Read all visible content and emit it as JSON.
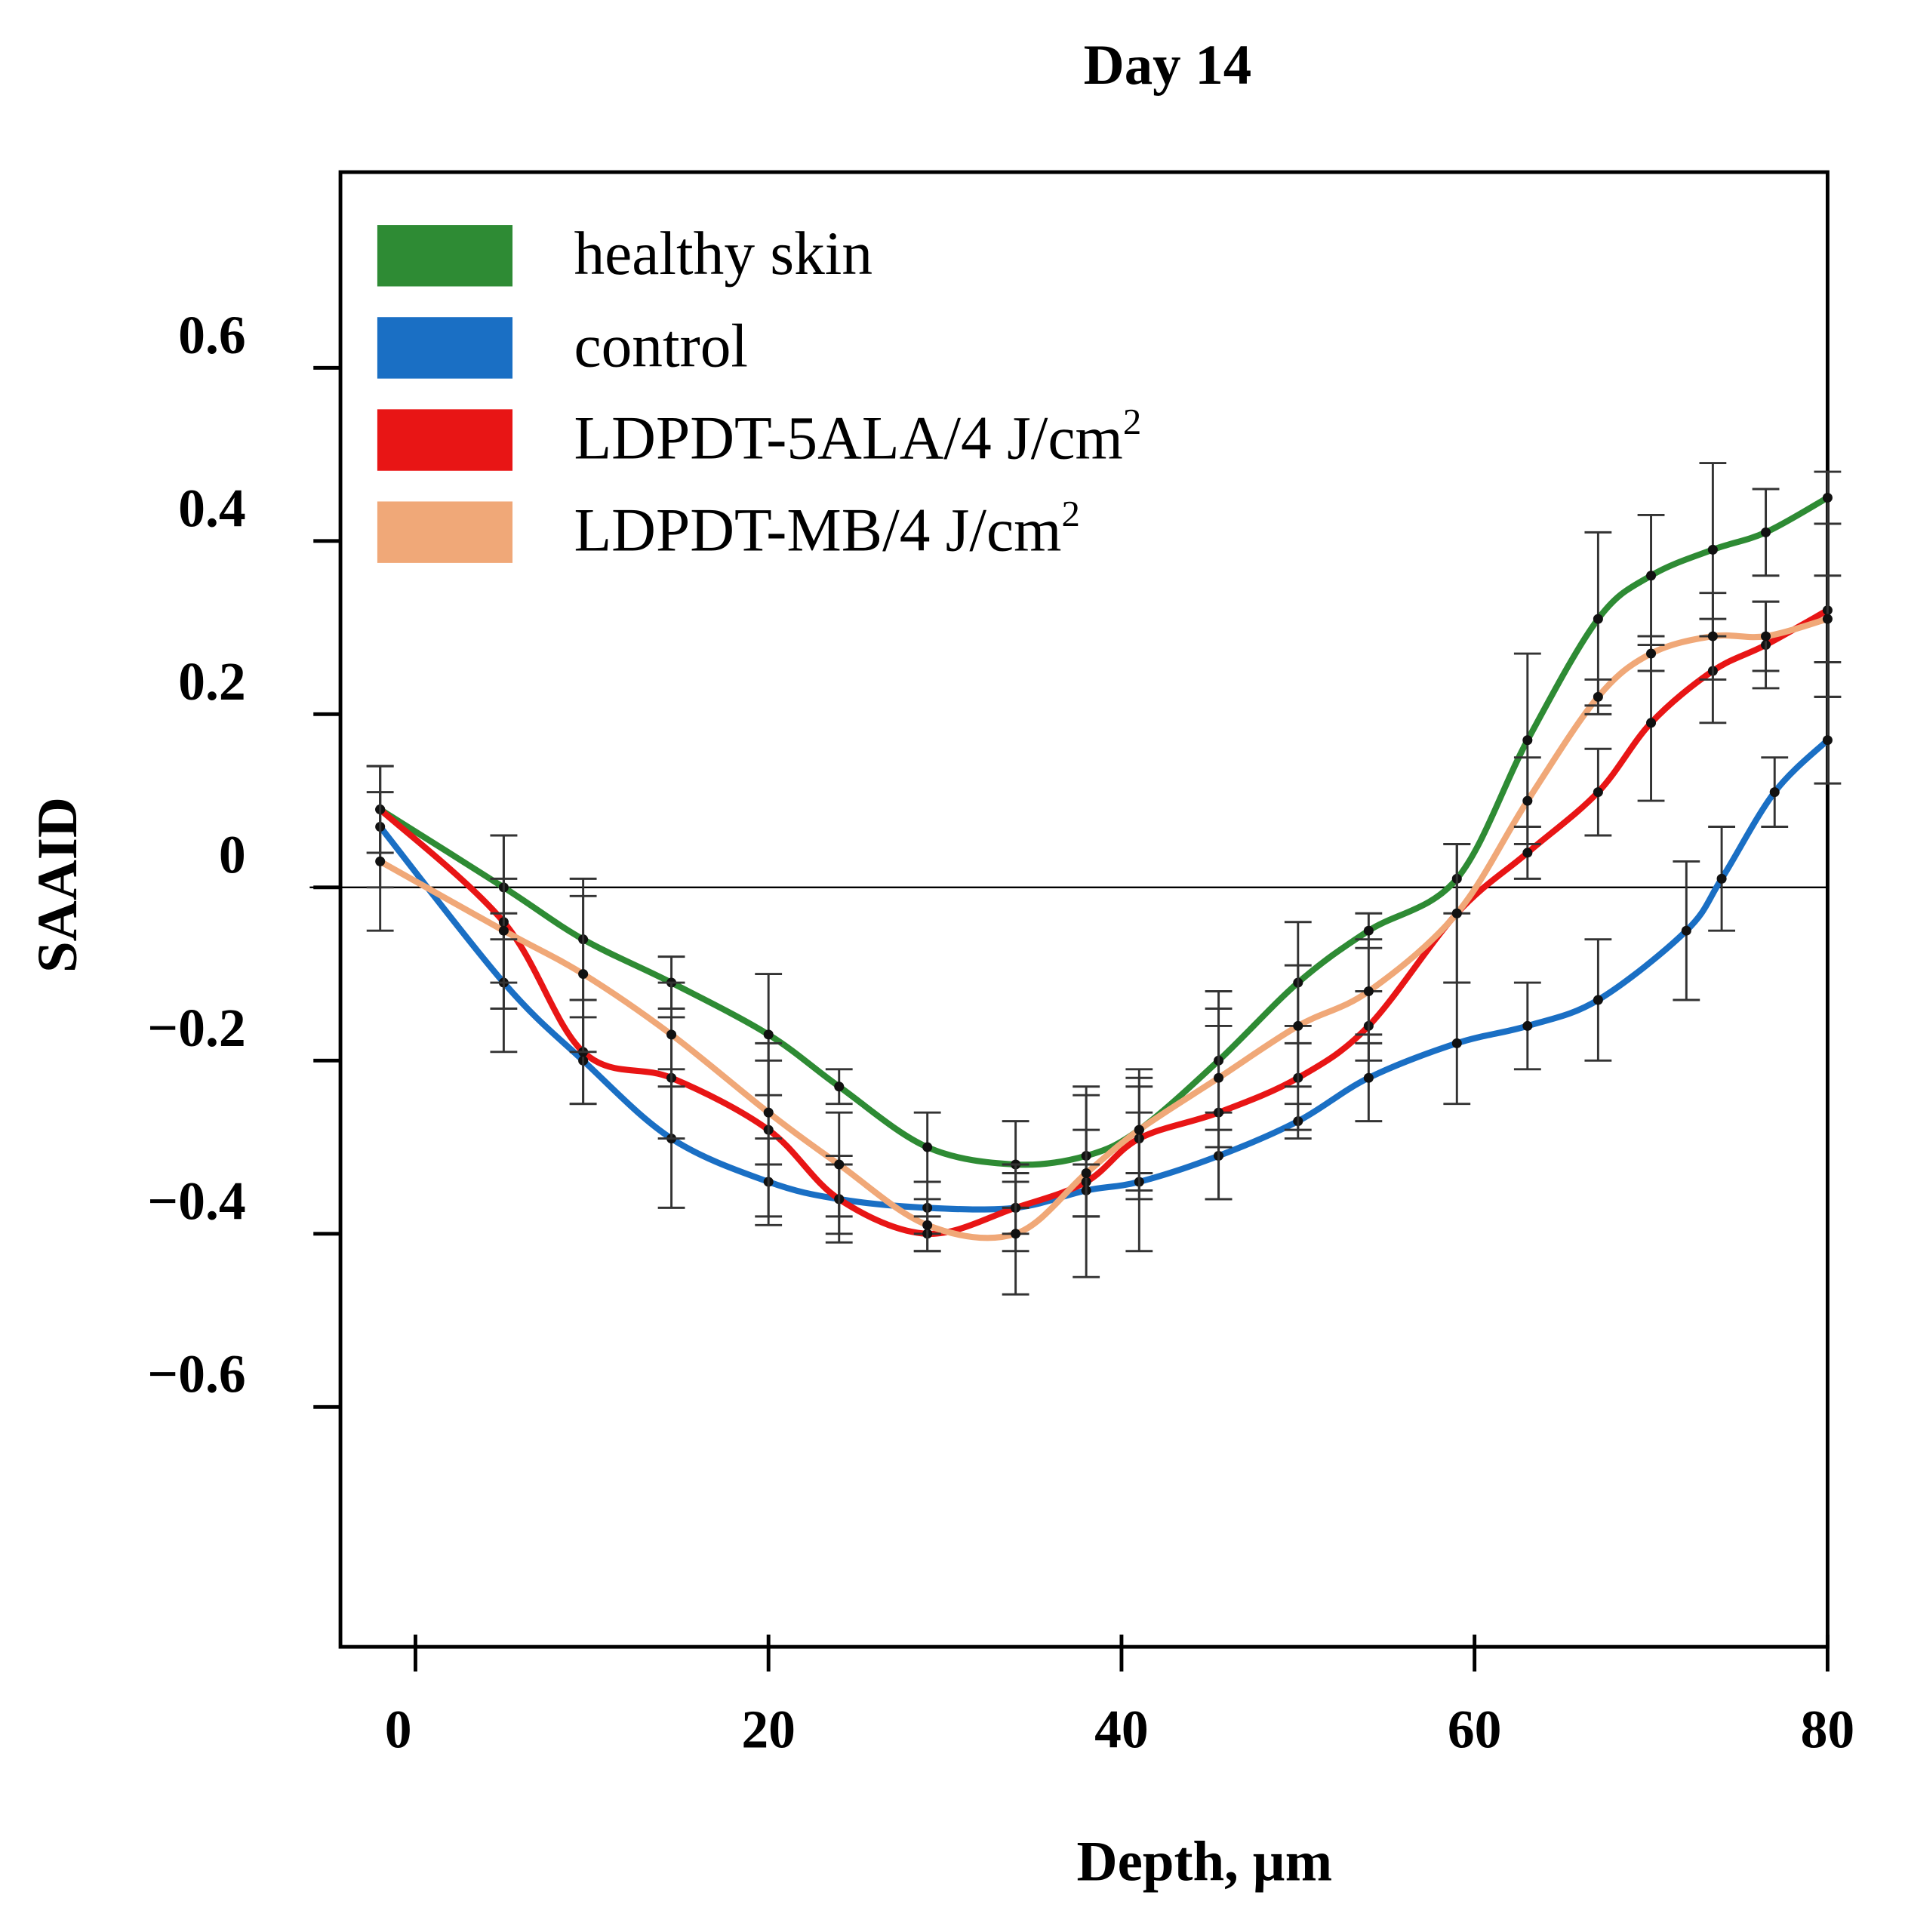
{
  "chart_data": {
    "type": "line",
    "title": "Day 14",
    "xlabel": "Depth, µm",
    "ylabel": "SAAID",
    "xlim": [
      -4.25,
      80
    ],
    "ylim": [
      -0.877,
      0.826
    ],
    "xticks": [
      0,
      20,
      40,
      60,
      80
    ],
    "xtick_labels": [
      "0",
      "20",
      "40",
      "60",
      "80"
    ],
    "yticks": [
      0.6,
      0.4,
      0.2,
      0,
      -0.2,
      -0.4,
      -0.6
    ],
    "ytick_labels": [
      "0.6",
      "0.4",
      "0.2",
      "0",
      "−0.2",
      "−0.4",
      "−0.6"
    ],
    "grid": false,
    "zero_line": true,
    "legend_position": "top-left",
    "series": [
      {
        "name": "healthy skin",
        "color": "#2e8b34",
        "x": [
          -2,
          5,
          9.5,
          14.5,
          20,
          24,
          29,
          34,
          38,
          41,
          45.5,
          50,
          54,
          59,
          63,
          67,
          70,
          73.5,
          76.5,
          80
        ],
        "y": [
          0.09,
          0.0,
          -0.06,
          -0.11,
          -0.17,
          -0.23,
          -0.3,
          -0.32,
          -0.31,
          -0.28,
          -0.2,
          -0.11,
          -0.05,
          0.01,
          0.17,
          0.31,
          0.36,
          0.39,
          0.41,
          0.45
        ],
        "err": [
          0.05,
          0.06,
          0.07,
          0.03,
          0.07,
          0.02,
          0.04,
          0.05,
          0.07,
          0.05,
          0.08,
          0.07,
          0.02,
          0.04,
          0.1,
          0.1,
          0.07,
          0.1,
          0.05,
          0.03
        ]
      },
      {
        "name": "control",
        "color": "#1a6fc4",
        "x": [
          -2,
          5,
          9.5,
          14.5,
          20,
          24,
          29,
          34,
          38,
          41,
          45.5,
          50,
          54,
          59,
          63,
          67,
          72,
          74,
          77,
          80
        ],
        "y": [
          0.07,
          -0.11,
          -0.2,
          -0.29,
          -0.34,
          -0.36,
          -0.37,
          -0.37,
          -0.35,
          -0.34,
          -0.31,
          -0.27,
          -0.22,
          -0.18,
          -0.16,
          -0.13,
          -0.05,
          0.01,
          0.11,
          0.17
        ],
        "err": [
          0.07,
          0.08,
          0.05,
          0.08,
          0.05,
          0.04,
          0.03,
          0.03,
          0.03,
          0.08,
          0.05,
          0.02,
          0.05,
          0.07,
          0.05,
          0.07,
          0.08,
          0.06,
          0.04,
          0.05
        ]
      },
      {
        "name": "LDPDT-5ALA/4 J/cm²",
        "color": "#e81515",
        "x": [
          -2,
          5,
          9.5,
          14.5,
          20,
          24,
          29,
          34,
          38,
          41,
          45.5,
          50,
          54,
          59,
          63,
          67,
          70,
          73.5,
          76.5,
          80
        ],
        "y": [
          0.09,
          -0.04,
          -0.19,
          -0.22,
          -0.28,
          -0.36,
          -0.4,
          -0.37,
          -0.34,
          -0.29,
          -0.26,
          -0.22,
          -0.16,
          -0.03,
          0.04,
          0.11,
          0.19,
          0.25,
          0.28,
          0.32
        ],
        "err": [
          0.05,
          0.1,
          0.06,
          0.07,
          0.1,
          0.05,
          0.02,
          0.05,
          0.11,
          0.07,
          0.1,
          0.06,
          0.04,
          0.08,
          0.03,
          0.05,
          0.09,
          0.06,
          0.05,
          0.1
        ]
      },
      {
        "name": "LDPDT-MB/4 J/cm²",
        "color": "#f0a878",
        "x": [
          -2,
          5,
          9.5,
          14.5,
          20,
          24,
          29,
          34,
          38,
          41,
          45.5,
          50,
          54,
          59,
          63,
          67,
          70,
          73.5,
          76.5,
          80
        ],
        "y": [
          0.03,
          -0.05,
          -0.1,
          -0.17,
          -0.26,
          -0.32,
          -0.39,
          -0.4,
          -0.33,
          -0.28,
          -0.22,
          -0.16,
          -0.12,
          -0.03,
          0.1,
          0.22,
          0.27,
          0.29,
          0.29,
          0.31
        ],
        "err": [
          0.08,
          0.06,
          0.09,
          0.06,
          0.06,
          0.06,
          0.03,
          0.07,
          0.05,
          0.07,
          0.08,
          0.07,
          0.06,
          0.08,
          0.05,
          0.02,
          0.02,
          0.05,
          0.04,
          0.05
        ]
      }
    ]
  }
}
